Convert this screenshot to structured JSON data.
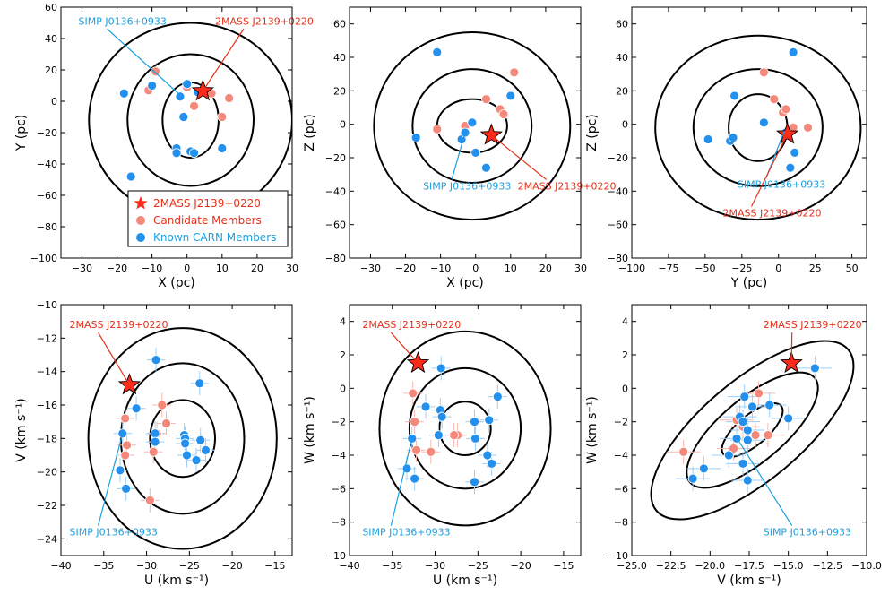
{
  "colors": {
    "star": "#ff2b1a",
    "candidate": "#f4897b",
    "known": "#2390ee",
    "simp_label": "#1a9fe0",
    "twomass_label": "#e53018",
    "ellipse": "#000000",
    "errorbar_candidate": "#f7b8ae",
    "errorbar_known": "#9ccdf5"
  },
  "legend": {
    "entries": [
      {
        "label": "2MASS J2139+0220",
        "marker": "star"
      },
      {
        "label": "Candidate Members",
        "marker": "circle-candidate"
      },
      {
        "label": "Known CARN Members",
        "marker": "circle-known"
      }
    ]
  },
  "chart_data": [
    {
      "type": "scatter",
      "id": "xy",
      "xlabel": "X (pc)",
      "ylabel": "Y (pc)",
      "xlim": [
        -36,
        30
      ],
      "ylim": [
        -100,
        60
      ],
      "xticks": [
        -30,
        -20,
        -10,
        0,
        10,
        20,
        30
      ],
      "yticks": [
        -100,
        -80,
        -60,
        -40,
        -20,
        0,
        20,
        40,
        60
      ],
      "ellipses": [
        {
          "cx": 1,
          "cy": -12,
          "rx": 8,
          "ry": 24,
          "angle": 0
        },
        {
          "cx": 1,
          "cy": -12,
          "rx": 18,
          "ry": 42,
          "angle": 0
        },
        {
          "cx": 1,
          "cy": -12,
          "rx": 29,
          "ry": 62,
          "angle": 0
        }
      ],
      "star": {
        "x": 4.5,
        "y": 6.5
      },
      "candidates": [
        [
          -9,
          19
        ],
        [
          -11,
          7
        ],
        [
          0,
          9
        ],
        [
          2,
          -3
        ],
        [
          7,
          5
        ],
        [
          10,
          -10
        ],
        [
          12,
          2
        ]
      ],
      "known": [
        [
          -18,
          5
        ],
        [
          -10,
          10
        ],
        [
          -2,
          3
        ],
        [
          0,
          11
        ],
        [
          -1,
          -10
        ],
        [
          -3,
          -30
        ],
        [
          -3,
          -33
        ],
        [
          1,
          -32
        ],
        [
          2,
          -33
        ],
        [
          10,
          -30
        ],
        [
          -16,
          -48
        ],
        [
          3,
          6
        ]
      ],
      "annotations": [
        {
          "text": "SIMP J0136+0933",
          "color": "simp",
          "tx": -31,
          "ty": 49,
          "px": -2,
          "py": 4
        },
        {
          "text": "2MASS J2139+0220",
          "color": "twomass",
          "tx": 8,
          "ty": 49,
          "px": 4.5,
          "py": 6.5
        }
      ],
      "show_legend": true
    },
    {
      "type": "scatter",
      "id": "xz",
      "xlabel": "X (pc)",
      "ylabel": "Z (pc)",
      "xlim": [
        -36,
        30
      ],
      "ylim": [
        -80,
        70
      ],
      "xticks": [
        -30,
        -20,
        -10,
        0,
        10,
        20,
        30
      ],
      "yticks": [
        -80,
        -60,
        -40,
        -20,
        0,
        20,
        40,
        60
      ],
      "ellipses": [
        {
          "cx": -1,
          "cy": -1,
          "rx": 10,
          "ry": 16,
          "angle": 0
        },
        {
          "cx": -1,
          "cy": -1,
          "rx": 17,
          "ry": 34,
          "angle": 0
        },
        {
          "cx": -1,
          "cy": -1,
          "rx": 28,
          "ry": 56,
          "angle": 0
        }
      ],
      "star": {
        "x": 4.5,
        "y": -6.5
      },
      "candidates": [
        [
          -11,
          -3
        ],
        [
          -3,
          -1
        ],
        [
          3,
          15
        ],
        [
          7,
          9
        ],
        [
          8,
          6
        ],
        [
          11,
          31
        ]
      ],
      "known": [
        [
          -11,
          43
        ],
        [
          -17,
          -8
        ],
        [
          -4,
          -9
        ],
        [
          -3,
          -5
        ],
        [
          -1,
          1
        ],
        [
          0,
          -17
        ],
        [
          3,
          -26
        ],
        [
          10,
          17
        ]
      ],
      "annotations": [
        {
          "text": "SIMP J0136+0933",
          "color": "simp",
          "tx": -15,
          "ty": -39,
          "px": -3,
          "py": -5
        },
        {
          "text": "2MASS J2139+0220",
          "color": "twomass",
          "tx": 12,
          "ty": -39,
          "px": 4.5,
          "py": -6.5
        }
      ],
      "show_legend": false
    },
    {
      "type": "scatter",
      "id": "yz",
      "xlabel": "Y (pc)",
      "ylabel": "Z (pc)",
      "xlim": [
        -100,
        60
      ],
      "ylim": [
        -80,
        70
      ],
      "xticks": [
        -100,
        -75,
        -50,
        -25,
        0,
        25,
        50
      ],
      "yticks": [
        -80,
        -60,
        -40,
        -20,
        0,
        20,
        40,
        60
      ],
      "ellipses": [
        {
          "cx": -14,
          "cy": -2,
          "rx": 20,
          "ry": 20,
          "angle": 0
        },
        {
          "cx": -14,
          "cy": -2,
          "rx": 44,
          "ry": 35,
          "angle": 0
        },
        {
          "cx": -14,
          "cy": -2,
          "rx": 70,
          "ry": 55,
          "angle": 0
        }
      ],
      "star": {
        "x": 6,
        "y": -6
      },
      "candidates": [
        [
          -10,
          31
        ],
        [
          -3,
          15
        ],
        [
          3,
          7
        ],
        [
          5,
          9
        ],
        [
          10,
          -2
        ],
        [
          20,
          -2
        ]
      ],
      "known": [
        [
          10,
          43
        ],
        [
          -30,
          17
        ],
        [
          -48,
          -9
        ],
        [
          -33,
          -10
        ],
        [
          -31,
          -8
        ],
        [
          -10,
          1
        ],
        [
          11,
          -17
        ],
        [
          8,
          -26
        ],
        [
          5,
          -5
        ]
      ],
      "annotations": [
        {
          "text": "SIMP J0136+0933",
          "color": "simp",
          "tx": -28,
          "ty": -38,
          "px": 4,
          "py": -4
        },
        {
          "text": "2MASS J2139+0220",
          "color": "twomass",
          "tx": -38,
          "ty": -55,
          "px": 6,
          "py": -6
        }
      ],
      "show_legend": false
    },
    {
      "type": "scatter",
      "id": "uv",
      "xlabel": "U (km s⁻¹)",
      "ylabel": "V (km s⁻¹)",
      "xlim": [
        -40,
        -13
      ],
      "ylim": [
        -25,
        -10
      ],
      "xticks": [
        -40,
        -35,
        -30,
        -25,
        -20,
        -15
      ],
      "yticks": [
        -24,
        -22,
        -20,
        -18,
        -16,
        -14,
        -12,
        -10
      ],
      "ellipses": [
        {
          "cx": -25.8,
          "cy": -18,
          "rx": 3.8,
          "ry": 2.3,
          "angle": 0
        },
        {
          "cx": -25.8,
          "cy": -18,
          "rx": 7.2,
          "ry": 4.5,
          "angle": 0
        },
        {
          "cx": -25.8,
          "cy": -18,
          "rx": 11,
          "ry": 6.6,
          "angle": 0
        }
      ],
      "star": {
        "x": -32,
        "y": -14.8
      },
      "candidates": [
        [
          -32.5,
          -16.8
        ],
        [
          -32.3,
          -18.4
        ],
        [
          -32.5,
          -19
        ],
        [
          -28.2,
          -16
        ],
        [
          -27.7,
          -17.1
        ],
        [
          -28.8,
          -17.7
        ],
        [
          -29.2,
          -18.8
        ],
        [
          -29.6,
          -21.7
        ]
      ],
      "known": [
        [
          -28.9,
          -13.3
        ],
        [
          -31.2,
          -16.2
        ],
        [
          -32.8,
          -17.7
        ],
        [
          -29,
          -17.7
        ],
        [
          -29,
          -18.2
        ],
        [
          -25.6,
          -17.8
        ],
        [
          -25.5,
          -18
        ],
        [
          -25.5,
          -18.3
        ],
        [
          -23.7,
          -18.1
        ],
        [
          -23.1,
          -18.7
        ],
        [
          -25.3,
          -19.0
        ],
        [
          -24.2,
          -19.3
        ],
        [
          -33.1,
          -19.9
        ],
        [
          -32.4,
          -21
        ],
        [
          -23.8,
          -14.7
        ]
      ],
      "annotations": [
        {
          "text": "2MASS J2139+0220",
          "color": "twomass",
          "tx": -39,
          "ty": -11.4,
          "px": -32,
          "py": -14.8
        },
        {
          "text": "SIMP J0136+0933",
          "color": "simp",
          "tx": -39,
          "ty": -23.8,
          "px": -32.8,
          "py": -17.7
        }
      ],
      "show_legend": false
    },
    {
      "type": "scatter",
      "id": "uw",
      "xlabel": "U (km s⁻¹)",
      "ylabel": "W (km s⁻¹)",
      "xlim": [
        -40,
        -13
      ],
      "ylim": [
        -10,
        5
      ],
      "xticks": [
        -40,
        -35,
        -30,
        -25,
        -20,
        -15
      ],
      "yticks": [
        -10,
        -8,
        -6,
        -4,
        -2,
        0,
        2,
        4
      ],
      "ellipses": [
        {
          "cx": -26.5,
          "cy": -2.4,
          "rx": 3,
          "ry": 1.6,
          "angle": 0
        },
        {
          "cx": -26.5,
          "cy": -2.4,
          "rx": 6.5,
          "ry": 3.6,
          "angle": 0
        },
        {
          "cx": -26.5,
          "cy": -2.4,
          "rx": 10,
          "ry": 5.8,
          "angle": 0
        }
      ],
      "star": {
        "x": -32,
        "y": 1.5
      },
      "candidates": [
        [
          -32.6,
          -0.3
        ],
        [
          -32.4,
          -2
        ],
        [
          -32.2,
          -3.7
        ],
        [
          -30.5,
          -3.8
        ],
        [
          -27.4,
          -2.8
        ],
        [
          -27.8,
          -2.8
        ]
      ],
      "known": [
        [
          -29.3,
          1.2
        ],
        [
          -31.1,
          -1.1
        ],
        [
          -29.4,
          -1.3
        ],
        [
          -29.2,
          -1.7
        ],
        [
          -29.6,
          -2.8
        ],
        [
          -25.4,
          -2.0
        ],
        [
          -23.7,
          -1.9
        ],
        [
          -22.7,
          -0.5
        ],
        [
          -25.3,
          -3.0
        ],
        [
          -23.9,
          -4.0
        ],
        [
          -23.4,
          -4.5
        ],
        [
          -32.7,
          -3.0
        ],
        [
          -33.3,
          -4.8
        ],
        [
          -32.4,
          -5.4
        ],
        [
          -25.4,
          -5.6
        ]
      ],
      "annotations": [
        {
          "text": "2MASS J2139+0220",
          "color": "twomass",
          "tx": -38.5,
          "ty": 3.6,
          "px": -32,
          "py": 1.5
        },
        {
          "text": "SIMP J0136+0933",
          "color": "simp",
          "tx": -38.5,
          "ty": -8.8,
          "px": -32.7,
          "py": -3.0
        }
      ],
      "show_legend": false
    },
    {
      "type": "scatter",
      "id": "vw",
      "xlabel": "V (km s⁻¹)",
      "ylabel": "W (km s⁻¹)",
      "xlim": [
        -25,
        -10
      ],
      "ylim": [
        -10,
        5
      ],
      "xticks": [
        -25.0,
        -22.5,
        -20.0,
        -17.5,
        -15.0,
        -12.5,
        -10.0
      ],
      "xtick_labels": [
        "−25.0",
        "−22.5",
        "−20.0",
        "−17.5",
        "−15.0",
        "−12.5",
        "−10.0"
      ],
      "yticks": [
        -10,
        -8,
        -6,
        -4,
        -2,
        0,
        2,
        4
      ],
      "ellipses": [
        {
          "cx": -17.3,
          "cy": -2.5,
          "rx": 2.4,
          "ry": 0.9,
          "angle": 40
        },
        {
          "cx": -17.3,
          "cy": -2.5,
          "rx": 5.2,
          "ry": 1.9,
          "angle": 40
        },
        {
          "cx": -17.3,
          "cy": -2.5,
          "rx": 8.0,
          "ry": 3.0,
          "angle": 40
        }
      ],
      "star": {
        "x": -14.8,
        "y": 1.5
      },
      "candidates": [
        [
          -21.7,
          -3.8
        ],
        [
          -18.3,
          -1.9
        ],
        [
          -17.1,
          -2.8
        ],
        [
          -16.9,
          -0.3
        ],
        [
          -16.3,
          -2.8
        ],
        [
          -18.5,
          -3.6
        ],
        [
          -17.9,
          -2.3
        ]
      ],
      "known": [
        [
          -13.3,
          1.2
        ],
        [
          -17.8,
          -0.5
        ],
        [
          -17.3,
          -1.1
        ],
        [
          -16.2,
          -1.0
        ],
        [
          -18.1,
          -1.7
        ],
        [
          -17.9,
          -2.0
        ],
        [
          -17.6,
          -2.5
        ],
        [
          -18.3,
          -3.0
        ],
        [
          -17.6,
          -3.1
        ],
        [
          -18.8,
          -4.0
        ],
        [
          -17.9,
          -4.5
        ],
        [
          -20.4,
          -4.8
        ],
        [
          -21.1,
          -5.4
        ],
        [
          -17.6,
          -5.5
        ],
        [
          -15.0,
          -1.8
        ]
      ],
      "annotations": [
        {
          "text": "2MASS J2139+0220",
          "color": "twomass",
          "tx": -16.6,
          "ty": 3.6,
          "px": -14.8,
          "py": 1.5
        },
        {
          "text": "SIMP J0136+0933",
          "color": "simp",
          "tx": -16.6,
          "ty": -8.8,
          "px": -18.2,
          "py": -3.1
        }
      ],
      "show_legend": false
    }
  ]
}
